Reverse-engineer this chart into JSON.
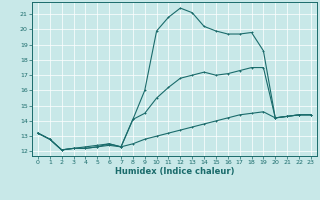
{
  "xlabel": "Humidex (Indice chaleur)",
  "bg_color": "#c8e8e8",
  "line_color": "#1a6b6b",
  "grid_color": "#ffffff",
  "xlim": [
    -0.5,
    23.5
  ],
  "ylim": [
    11.7,
    21.8
  ],
  "yticks": [
    12,
    13,
    14,
    15,
    16,
    17,
    18,
    19,
    20,
    21
  ],
  "xticks": [
    0,
    1,
    2,
    3,
    4,
    5,
    6,
    7,
    8,
    9,
    10,
    11,
    12,
    13,
    14,
    15,
    16,
    17,
    18,
    19,
    20,
    21,
    22,
    23
  ],
  "series1_x": [
    0,
    1,
    2,
    3,
    4,
    5,
    6,
    7,
    8,
    9,
    10,
    11,
    12,
    13,
    14,
    15,
    16,
    17,
    18,
    19,
    20,
    21,
    22,
    23
  ],
  "series1_y": [
    13.2,
    12.8,
    12.1,
    12.2,
    12.3,
    12.4,
    12.5,
    12.3,
    14.1,
    16.0,
    19.9,
    20.8,
    21.4,
    21.1,
    20.2,
    19.9,
    19.7,
    19.7,
    19.8,
    18.6,
    14.2,
    14.3,
    14.4,
    14.4
  ],
  "series2_x": [
    0,
    1,
    2,
    3,
    4,
    5,
    6,
    7,
    8,
    9,
    10,
    11,
    12,
    13,
    14,
    15,
    16,
    17,
    18,
    19,
    20,
    21,
    22,
    23
  ],
  "series2_y": [
    13.2,
    12.8,
    12.1,
    12.2,
    12.2,
    12.3,
    12.5,
    12.3,
    14.1,
    14.5,
    15.5,
    16.2,
    16.8,
    17.0,
    17.2,
    17.0,
    17.1,
    17.3,
    17.5,
    17.5,
    14.2,
    14.3,
    14.4,
    14.4
  ],
  "series3_x": [
    0,
    1,
    2,
    3,
    4,
    5,
    6,
    7,
    8,
    9,
    10,
    11,
    12,
    13,
    14,
    15,
    16,
    17,
    18,
    19,
    20,
    21,
    22,
    23
  ],
  "series3_y": [
    13.2,
    12.8,
    12.1,
    12.2,
    12.2,
    12.3,
    12.4,
    12.3,
    12.5,
    12.8,
    13.0,
    13.2,
    13.4,
    13.6,
    13.8,
    14.0,
    14.2,
    14.4,
    14.5,
    14.6,
    14.2,
    14.3,
    14.4,
    14.4
  ]
}
